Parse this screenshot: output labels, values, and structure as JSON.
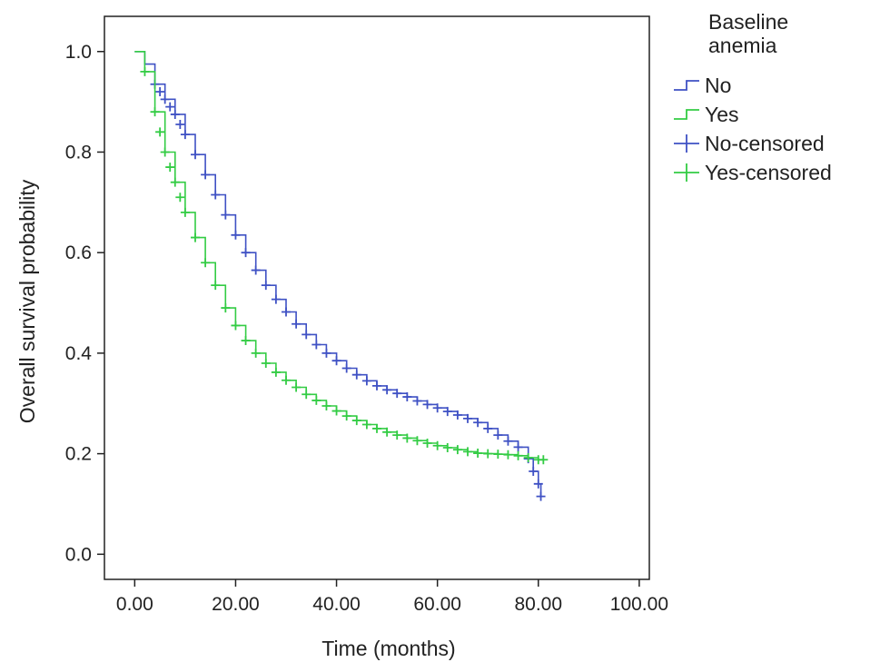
{
  "chart_data": {
    "type": "line",
    "subtype": "kaplan-meier",
    "xlabel": "Time (months)",
    "ylabel": "Overall survival probability",
    "xlim": [
      -6,
      102
    ],
    "ylim": [
      -0.05,
      1.07
    ],
    "xticks": [
      0,
      20,
      40,
      60,
      80,
      100
    ],
    "xtick_labels": [
      "0.00",
      "20.00",
      "40.00",
      "60.00",
      "80.00",
      "100.00"
    ],
    "yticks": [
      0.0,
      0.2,
      0.4,
      0.6,
      0.8,
      1.0
    ],
    "ytick_labels": [
      "0.0",
      "0.2",
      "0.4",
      "0.6",
      "0.8",
      "1.0"
    ],
    "grid": false,
    "legend": {
      "title": "Baseline anemia",
      "position": "right",
      "entries": [
        {
          "label": "No",
          "symbol": "step",
          "color": "#3f51c4"
        },
        {
          "label": "Yes",
          "symbol": "step",
          "color": "#33cc44"
        },
        {
          "label": "No-censored",
          "symbol": "plus",
          "color": "#3f51c4"
        },
        {
          "label": "Yes-censored",
          "symbol": "plus",
          "color": "#33cc44"
        }
      ]
    },
    "series": [
      {
        "name": "No",
        "color": "#3f51c4",
        "x": [
          0,
          2,
          4,
          6,
          8,
          10,
          12,
          14,
          16,
          18,
          20,
          22,
          24,
          26,
          28,
          30,
          32,
          34,
          36,
          38,
          40,
          42,
          44,
          46,
          48,
          50,
          52,
          54,
          56,
          58,
          60,
          62,
          64,
          66,
          68,
          70,
          72,
          74,
          76,
          78,
          79,
          80,
          80.5
        ],
        "y": [
          1.0,
          0.975,
          0.935,
          0.905,
          0.875,
          0.835,
          0.795,
          0.755,
          0.715,
          0.675,
          0.635,
          0.6,
          0.565,
          0.535,
          0.507,
          0.482,
          0.458,
          0.437,
          0.417,
          0.4,
          0.385,
          0.37,
          0.357,
          0.345,
          0.335,
          0.327,
          0.32,
          0.313,
          0.305,
          0.298,
          0.291,
          0.284,
          0.277,
          0.27,
          0.262,
          0.25,
          0.237,
          0.225,
          0.213,
          0.19,
          0.165,
          0.14,
          0.115
        ],
        "censored_x": [
          4,
          5,
          6,
          7,
          8,
          9,
          10,
          12,
          14,
          16,
          18,
          20,
          22,
          24,
          26,
          28,
          30,
          32,
          34,
          36,
          38,
          40,
          42,
          44,
          46,
          48,
          50,
          52,
          54,
          56,
          58,
          60,
          62,
          64,
          66,
          68,
          70,
          72,
          74,
          76,
          78,
          79,
          80,
          80.5
        ],
        "censored_y": [
          0.935,
          0.92,
          0.905,
          0.89,
          0.875,
          0.855,
          0.835,
          0.795,
          0.755,
          0.715,
          0.675,
          0.635,
          0.6,
          0.565,
          0.535,
          0.507,
          0.482,
          0.458,
          0.437,
          0.417,
          0.4,
          0.385,
          0.37,
          0.357,
          0.345,
          0.335,
          0.327,
          0.32,
          0.313,
          0.305,
          0.298,
          0.291,
          0.284,
          0.277,
          0.27,
          0.262,
          0.25,
          0.237,
          0.225,
          0.213,
          0.19,
          0.165,
          0.14,
          0.115
        ]
      },
      {
        "name": "Yes",
        "color": "#33cc44",
        "x": [
          0,
          2,
          4,
          6,
          8,
          10,
          12,
          14,
          16,
          18,
          20,
          22,
          24,
          26,
          28,
          30,
          32,
          34,
          36,
          38,
          40,
          42,
          44,
          46,
          48,
          50,
          52,
          54,
          56,
          58,
          60,
          62,
          64,
          66,
          68,
          70,
          72,
          74,
          76,
          78,
          80,
          81
        ],
        "y": [
          1.0,
          0.96,
          0.88,
          0.8,
          0.74,
          0.68,
          0.63,
          0.58,
          0.535,
          0.49,
          0.455,
          0.425,
          0.4,
          0.38,
          0.362,
          0.346,
          0.332,
          0.318,
          0.306,
          0.295,
          0.285,
          0.275,
          0.266,
          0.258,
          0.25,
          0.243,
          0.237,
          0.231,
          0.226,
          0.221,
          0.216,
          0.212,
          0.208,
          0.204,
          0.201,
          0.2,
          0.199,
          0.198,
          0.196,
          0.192,
          0.188,
          0.188
        ],
        "censored_x": [
          2,
          4,
          5,
          6,
          7,
          8,
          9,
          10,
          12,
          14,
          16,
          18,
          20,
          22,
          24,
          26,
          28,
          30,
          32,
          34,
          36,
          38,
          40,
          42,
          44,
          46,
          48,
          50,
          52,
          54,
          56,
          58,
          60,
          62,
          64,
          66,
          68,
          70,
          72,
          74,
          76,
          78,
          80,
          81
        ],
        "censored_y": [
          0.96,
          0.88,
          0.84,
          0.8,
          0.77,
          0.74,
          0.71,
          0.68,
          0.63,
          0.58,
          0.535,
          0.49,
          0.455,
          0.425,
          0.4,
          0.38,
          0.362,
          0.346,
          0.332,
          0.318,
          0.306,
          0.295,
          0.285,
          0.275,
          0.266,
          0.258,
          0.25,
          0.243,
          0.237,
          0.231,
          0.226,
          0.221,
          0.216,
          0.212,
          0.208,
          0.204,
          0.201,
          0.2,
          0.199,
          0.198,
          0.196,
          0.192,
          0.188,
          0.188
        ]
      }
    ]
  }
}
